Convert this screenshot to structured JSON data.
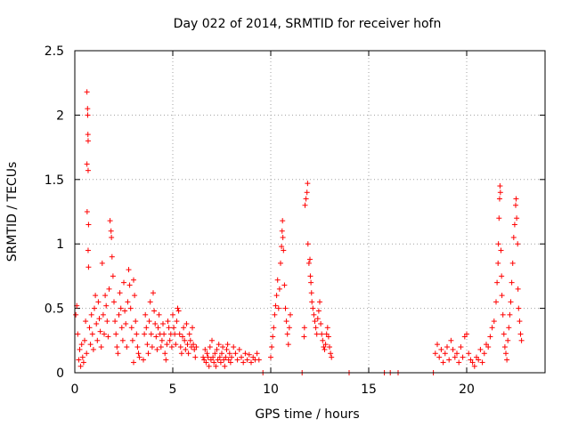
{
  "chart_data": {
    "type": "scatter",
    "title": "Day 022 of 2014, SRMTID for receiver hofn",
    "xlabel": "GPS time / hours",
    "ylabel": "SRMTID / TECUs",
    "xlim": [
      0,
      24
    ],
    "ylim": [
      0,
      2.5
    ],
    "xticks": [
      0,
      5,
      10,
      15,
      20
    ],
    "yticks": [
      0,
      0.5,
      1,
      1.5,
      2,
      2.5
    ],
    "xtick_labels": [
      "0",
      "5",
      "10",
      "15",
      "20"
    ],
    "ytick_labels": [
      "0",
      "0.5",
      "1",
      "1.5",
      "2",
      "2.5"
    ],
    "grid": true,
    "marker": "+",
    "color": "#ff0000",
    "series": [
      {
        "name": "SRMTID",
        "points": [
          [
            0.05,
            0.45
          ],
          [
            0.1,
            0.52
          ],
          [
            0.15,
            0.3
          ],
          [
            0.2,
            0.1
          ],
          [
            0.25,
            0.18
          ],
          [
            0.3,
            0.05
          ],
          [
            0.35,
            0.22
          ],
          [
            0.4,
            0.12
          ],
          [
            0.45,
            0.08
          ],
          [
            0.5,
            0.25
          ],
          [
            0.55,
            0.4
          ],
          [
            0.6,
            0.15
          ],
          [
            0.62,
            2.18
          ],
          [
            0.65,
            2.05
          ],
          [
            0.66,
            2.0
          ],
          [
            0.67,
            1.85
          ],
          [
            0.68,
            1.8
          ],
          [
            0.62,
            1.62
          ],
          [
            0.68,
            1.57
          ],
          [
            0.63,
            1.25
          ],
          [
            0.7,
            1.15
          ],
          [
            0.68,
            0.95
          ],
          [
            0.7,
            0.82
          ],
          [
            0.75,
            0.35
          ],
          [
            0.8,
            0.22
          ],
          [
            0.85,
            0.45
          ],
          [
            0.9,
            0.3
          ],
          [
            0.95,
            0.18
          ],
          [
            1.0,
            0.5
          ],
          [
            1.05,
            0.6
          ],
          [
            1.1,
            0.38
          ],
          [
            1.15,
            0.25
          ],
          [
            1.2,
            0.55
          ],
          [
            1.25,
            0.42
          ],
          [
            1.3,
            0.32
          ],
          [
            1.35,
            0.2
          ],
          [
            1.4,
            0.85
          ],
          [
            1.45,
            0.45
          ],
          [
            1.5,
            0.3
          ],
          [
            1.55,
            0.6
          ],
          [
            1.6,
            0.52
          ],
          [
            1.65,
            0.4
          ],
          [
            1.7,
            0.28
          ],
          [
            1.75,
            0.65
          ],
          [
            1.8,
            1.18
          ],
          [
            1.85,
            1.1
          ],
          [
            1.87,
            1.05
          ],
          [
            1.9,
            0.9
          ],
          [
            1.95,
            0.75
          ],
          [
            2.0,
            0.55
          ],
          [
            2.05,
            0.4
          ],
          [
            2.1,
            0.3
          ],
          [
            2.15,
            0.2
          ],
          [
            2.2,
            0.15
          ],
          [
            2.25,
            0.45
          ],
          [
            2.3,
            0.62
          ],
          [
            2.35,
            0.5
          ],
          [
            2.4,
            0.35
          ],
          [
            2.45,
            0.25
          ],
          [
            2.5,
            0.7
          ],
          [
            2.55,
            0.48
          ],
          [
            2.6,
            0.38
          ],
          [
            2.65,
            0.2
          ],
          [
            2.7,
            0.55
          ],
          [
            2.75,
            0.8
          ],
          [
            2.8,
            0.68
          ],
          [
            2.85,
            0.5
          ],
          [
            2.9,
            0.35
          ],
          [
            2.95,
            0.25
          ],
          [
            3.0,
            0.72
          ],
          [
            3.05,
            0.6
          ],
          [
            3.1,
            0.4
          ],
          [
            3.15,
            0.3
          ],
          [
            3.2,
            0.2
          ],
          [
            3.25,
            0.15
          ],
          [
            3.3,
            0.12
          ],
          [
            3.0,
            0.08
          ],
          [
            3.5,
            0.1
          ],
          [
            3.55,
            0.3
          ],
          [
            3.6,
            0.45
          ],
          [
            3.65,
            0.35
          ],
          [
            3.7,
            0.22
          ],
          [
            3.75,
            0.15
          ],
          [
            3.8,
            0.4
          ],
          [
            3.85,
            0.55
          ],
          [
            3.9,
            0.3
          ],
          [
            3.95,
            0.2
          ],
          [
            4.0,
            0.62
          ],
          [
            4.05,
            0.48
          ],
          [
            4.1,
            0.38
          ],
          [
            4.15,
            0.28
          ],
          [
            4.2,
            0.18
          ],
          [
            4.25,
            0.35
          ],
          [
            4.3,
            0.45
          ],
          [
            4.35,
            0.3
          ],
          [
            4.4,
            0.2
          ],
          [
            4.45,
            0.25
          ],
          [
            4.5,
            0.38
          ],
          [
            4.55,
            0.3
          ],
          [
            4.6,
            0.15
          ],
          [
            4.65,
            0.1
          ],
          [
            4.7,
            0.22
          ],
          [
            4.75,
            0.4
          ],
          [
            4.8,
            0.35
          ],
          [
            4.85,
            0.25
          ],
          [
            4.9,
            0.3
          ],
          [
            4.95,
            0.2
          ],
          [
            5.0,
            0.45
          ],
          [
            5.05,
            0.35
          ],
          [
            5.1,
            0.3
          ],
          [
            5.15,
            0.22
          ],
          [
            5.2,
            0.4
          ],
          [
            5.25,
            0.5
          ],
          [
            5.3,
            0.48
          ],
          [
            5.35,
            0.3
          ],
          [
            5.4,
            0.2
          ],
          [
            5.45,
            0.15
          ],
          [
            5.5,
            0.28
          ],
          [
            5.55,
            0.35
          ],
          [
            5.6,
            0.25
          ],
          [
            5.65,
            0.18
          ],
          [
            5.7,
            0.38
          ],
          [
            5.75,
            0.22
          ],
          [
            5.8,
            0.15
          ],
          [
            5.85,
            0.3
          ],
          [
            5.9,
            0.25
          ],
          [
            5.95,
            0.2
          ],
          [
            6.0,
            0.35
          ],
          [
            6.05,
            0.22
          ],
          [
            6.1,
            0.18
          ],
          [
            6.15,
            0.12
          ],
          [
            6.2,
            0.2
          ],
          [
            6.55,
            0.12
          ],
          [
            6.6,
            0.1
          ],
          [
            6.65,
            0.18
          ],
          [
            6.7,
            0.08
          ],
          [
            6.75,
            0.15
          ],
          [
            6.8,
            0.12
          ],
          [
            6.85,
            0.05
          ],
          [
            6.9,
            0.2
          ],
          [
            6.95,
            0.1
          ],
          [
            7.0,
            0.25
          ],
          [
            7.05,
            0.12
          ],
          [
            7.1,
            0.08
          ],
          [
            7.15,
            0.15
          ],
          [
            7.2,
            0.05
          ],
          [
            7.25,
            0.18
          ],
          [
            7.3,
            0.1
          ],
          [
            7.35,
            0.22
          ],
          [
            7.4,
            0.12
          ],
          [
            7.45,
            0.08
          ],
          [
            7.5,
            0.15
          ],
          [
            7.55,
            0.2
          ],
          [
            7.6,
            0.1
          ],
          [
            7.65,
            0.05
          ],
          [
            7.7,
            0.12
          ],
          [
            7.75,
            0.18
          ],
          [
            7.8,
            0.22
          ],
          [
            7.85,
            0.1
          ],
          [
            7.9,
            0.15
          ],
          [
            7.95,
            0.08
          ],
          [
            8.0,
            0.12
          ],
          [
            8.1,
            0.2
          ],
          [
            8.2,
            0.15
          ],
          [
            8.3,
            0.1
          ],
          [
            8.4,
            0.18
          ],
          [
            8.5,
            0.12
          ],
          [
            8.6,
            0.08
          ],
          [
            8.7,
            0.15
          ],
          [
            8.8,
            0.1
          ],
          [
            8.9,
            0.14
          ],
          [
            9.0,
            0.08
          ],
          [
            9.1,
            0.12
          ],
          [
            9.2,
            0.1
          ],
          [
            9.3,
            0.15
          ],
          [
            9.4,
            0.1
          ],
          [
            9.6,
            0.0
          ],
          [
            10.0,
            0.12
          ],
          [
            10.05,
            0.2
          ],
          [
            10.1,
            0.28
          ],
          [
            10.15,
            0.35
          ],
          [
            10.2,
            0.45
          ],
          [
            10.25,
            0.52
          ],
          [
            10.3,
            0.6
          ],
          [
            10.35,
            0.72
          ],
          [
            10.4,
            0.5
          ],
          [
            10.45,
            0.65
          ],
          [
            10.5,
            0.85
          ],
          [
            10.55,
            0.98
          ],
          [
            10.58,
            1.1
          ],
          [
            10.6,
            1.18
          ],
          [
            10.62,
            1.05
          ],
          [
            10.65,
            0.95
          ],
          [
            10.7,
            0.68
          ],
          [
            10.75,
            0.5
          ],
          [
            10.8,
            0.4
          ],
          [
            10.85,
            0.3
          ],
          [
            10.9,
            0.22
          ],
          [
            10.95,
            0.35
          ],
          [
            11.0,
            0.45
          ],
          [
            11.6,
            0.0
          ],
          [
            11.7,
            0.28
          ],
          [
            11.72,
            0.35
          ],
          [
            11.75,
            1.3
          ],
          [
            11.8,
            1.35
          ],
          [
            11.85,
            1.4
          ],
          [
            11.88,
            1.47
          ],
          [
            11.9,
            1.0
          ],
          [
            11.95,
            0.85
          ],
          [
            12.0,
            0.88
          ],
          [
            12.02,
            0.75
          ],
          [
            12.05,
            0.7
          ],
          [
            12.08,
            0.62
          ],
          [
            12.1,
            0.55
          ],
          [
            12.15,
            0.5
          ],
          [
            12.2,
            0.45
          ],
          [
            12.25,
            0.4
          ],
          [
            12.3,
            0.35
          ],
          [
            12.35,
            0.3
          ],
          [
            12.4,
            0.42
          ],
          [
            12.45,
            0.48
          ],
          [
            12.5,
            0.55
          ],
          [
            12.55,
            0.38
          ],
          [
            12.6,
            0.3
          ],
          [
            12.65,
            0.25
          ],
          [
            12.7,
            0.2
          ],
          [
            12.75,
            0.18
          ],
          [
            12.8,
            0.22
          ],
          [
            12.85,
            0.3
          ],
          [
            12.9,
            0.35
          ],
          [
            12.95,
            0.28
          ],
          [
            13.0,
            0.2
          ],
          [
            13.05,
            0.15
          ],
          [
            13.1,
            0.12
          ],
          [
            14.0,
            0.0
          ],
          [
            15.8,
            0.0
          ],
          [
            16.1,
            0.0
          ],
          [
            16.5,
            0.0
          ],
          [
            18.3,
            0.0
          ],
          [
            18.4,
            0.15
          ],
          [
            18.5,
            0.22
          ],
          [
            18.6,
            0.12
          ],
          [
            18.7,
            0.18
          ],
          [
            18.8,
            0.08
          ],
          [
            18.9,
            0.15
          ],
          [
            19.0,
            0.2
          ],
          [
            19.1,
            0.1
          ],
          [
            19.2,
            0.25
          ],
          [
            19.3,
            0.18
          ],
          [
            19.4,
            0.12
          ],
          [
            19.5,
            0.15
          ],
          [
            19.6,
            0.08
          ],
          [
            19.7,
            0.2
          ],
          [
            19.8,
            0.12
          ],
          [
            19.9,
            0.28
          ],
          [
            20.0,
            0.3
          ],
          [
            20.1,
            0.15
          ],
          [
            20.2,
            0.1
          ],
          [
            20.3,
            0.08
          ],
          [
            20.4,
            0.05
          ],
          [
            20.5,
            0.12
          ],
          [
            20.6,
            0.1
          ],
          [
            20.7,
            0.18
          ],
          [
            20.8,
            0.08
          ],
          [
            20.9,
            0.15
          ],
          [
            21.0,
            0.22
          ],
          [
            21.1,
            0.2
          ],
          [
            21.2,
            0.28
          ],
          [
            21.3,
            0.35
          ],
          [
            21.4,
            0.4
          ],
          [
            21.5,
            0.55
          ],
          [
            21.55,
            0.7
          ],
          [
            21.6,
            0.85
          ],
          [
            21.62,
            1.0
          ],
          [
            21.65,
            1.2
          ],
          [
            21.68,
            1.35
          ],
          [
            21.7,
            1.45
          ],
          [
            21.72,
            1.4
          ],
          [
            21.75,
            0.95
          ],
          [
            21.78,
            0.75
          ],
          [
            21.8,
            0.6
          ],
          [
            21.85,
            0.45
          ],
          [
            21.9,
            0.3
          ],
          [
            21.95,
            0.2
          ],
          [
            22.0,
            0.15
          ],
          [
            22.05,
            0.1
          ],
          [
            22.1,
            0.25
          ],
          [
            22.15,
            0.35
          ],
          [
            22.2,
            0.45
          ],
          [
            22.25,
            0.55
          ],
          [
            22.3,
            0.7
          ],
          [
            22.35,
            0.85
          ],
          [
            22.4,
            1.05
          ],
          [
            22.45,
            1.15
          ],
          [
            22.5,
            1.3
          ],
          [
            22.52,
            1.35
          ],
          [
            22.55,
            1.2
          ],
          [
            22.6,
            1.0
          ],
          [
            22.62,
            0.65
          ],
          [
            22.65,
            0.5
          ],
          [
            22.7,
            0.4
          ],
          [
            22.75,
            0.3
          ],
          [
            22.8,
            0.25
          ]
        ]
      }
    ]
  }
}
